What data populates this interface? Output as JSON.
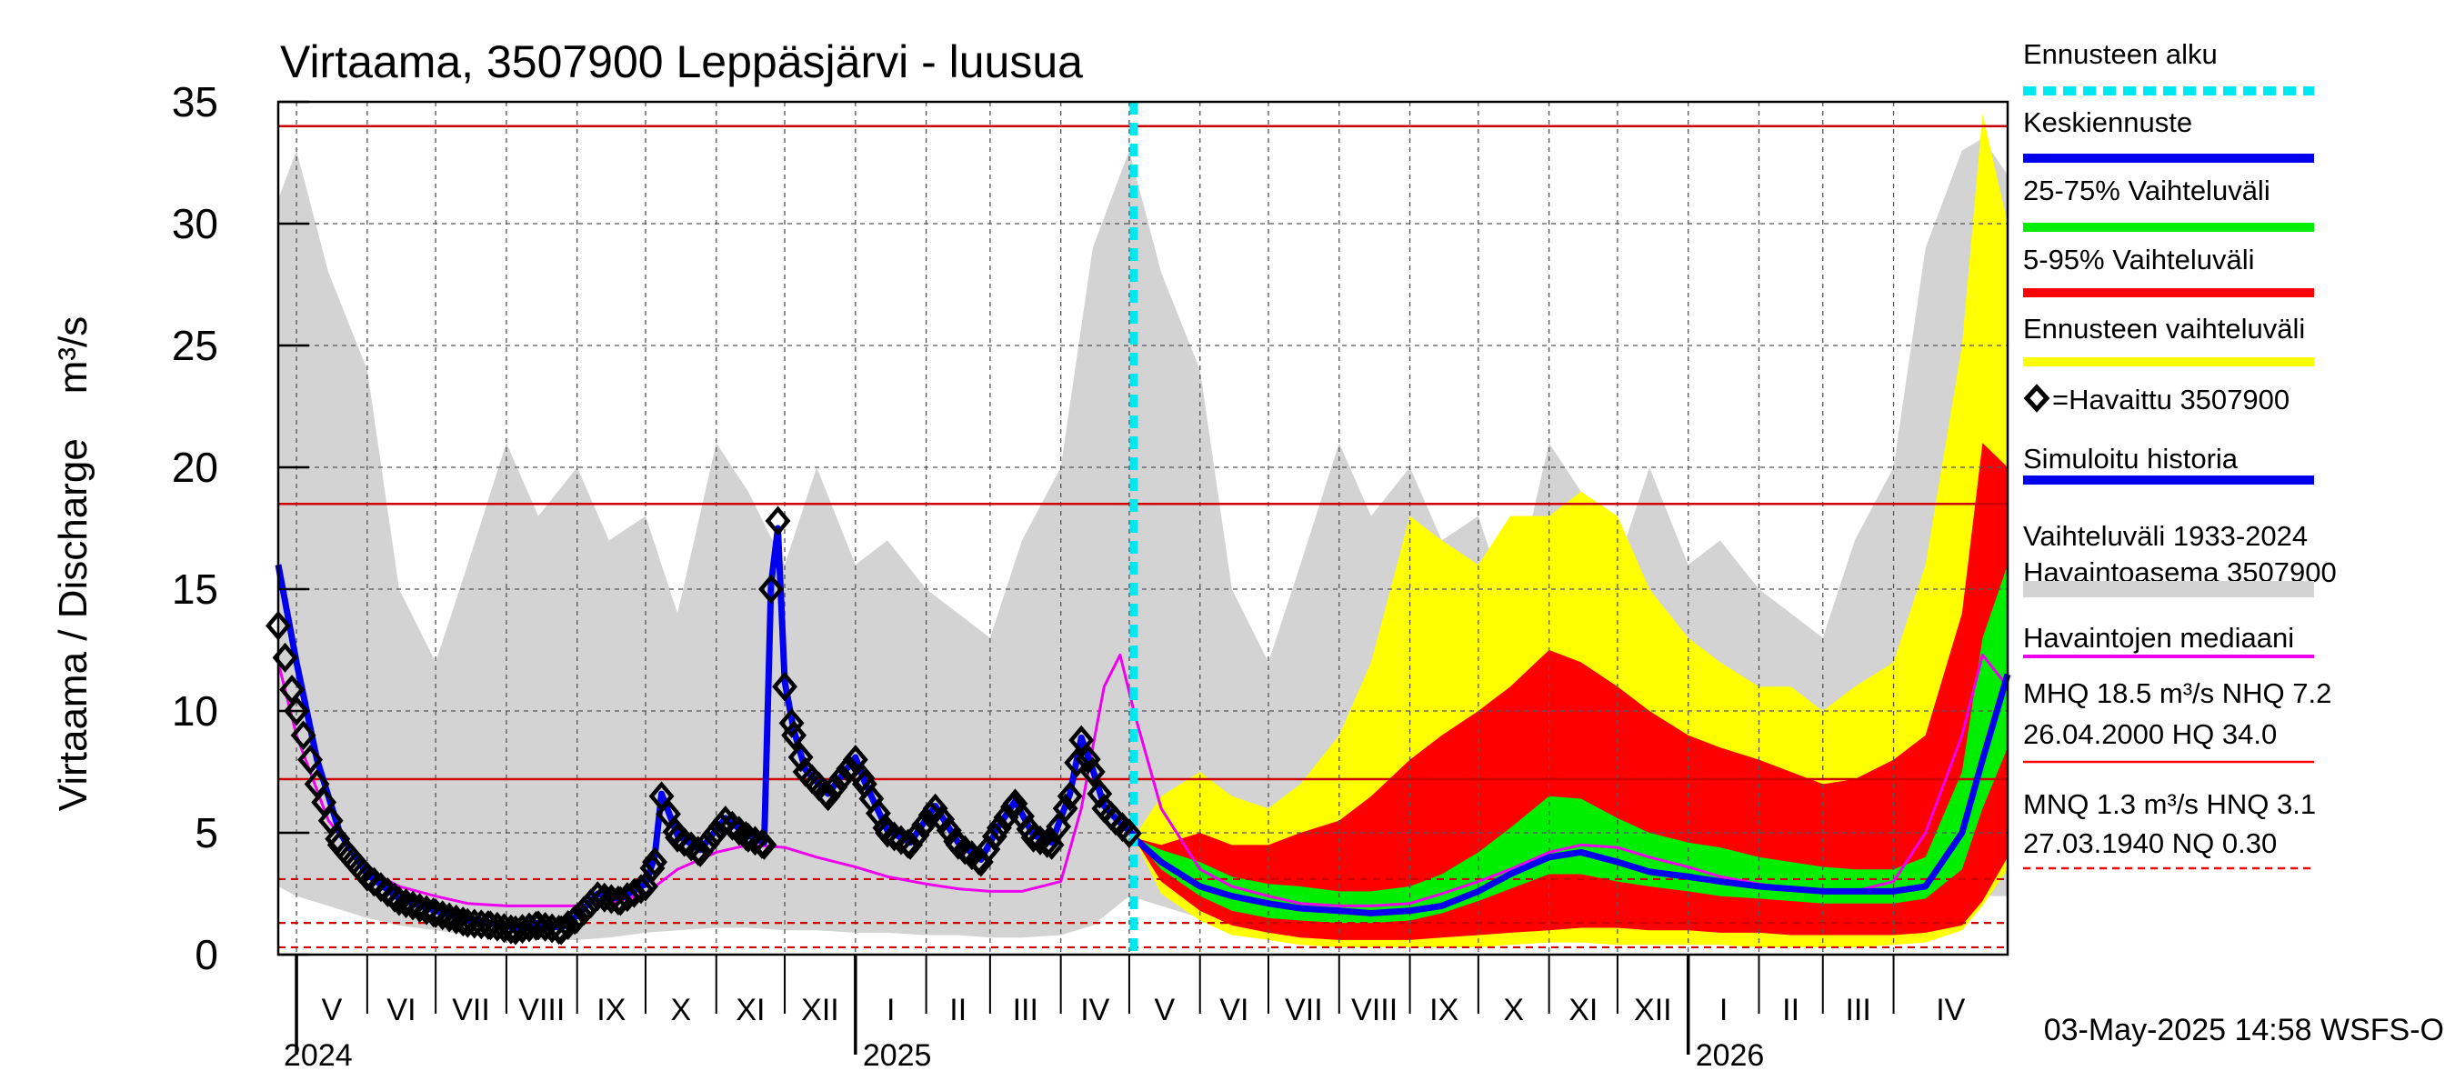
{
  "chart_data": {
    "type": "area",
    "title": "Virtaama, 3507900 Leppäsjärvi - luusua",
    "ylabel": "Virtaama / Discharge    m³/s",
    "ylim": [
      0,
      35
    ],
    "yticks": [
      "0",
      "5",
      "10",
      "15",
      "20",
      "25",
      "30",
      "35"
    ],
    "x_range": [
      "2024-04-23",
      "2026-05-21"
    ],
    "forecast_start": "2025-05-03",
    "months": [
      {
        "label": "V",
        "start": "2024-05-01"
      },
      {
        "label": "VI",
        "start": "2024-06-01"
      },
      {
        "label": "VII",
        "start": "2024-07-01"
      },
      {
        "label": "VIII",
        "start": "2024-08-01"
      },
      {
        "label": "IX",
        "start": "2024-09-01"
      },
      {
        "label": "X",
        "start": "2024-10-01"
      },
      {
        "label": "XI",
        "start": "2024-11-01"
      },
      {
        "label": "XII",
        "start": "2024-12-01"
      },
      {
        "label": "I",
        "start": "2025-01-01"
      },
      {
        "label": "II",
        "start": "2025-02-01"
      },
      {
        "label": "III",
        "start": "2025-03-01"
      },
      {
        "label": "IV",
        "start": "2025-04-01"
      },
      {
        "label": "V",
        "start": "2025-05-01"
      },
      {
        "label": "VI",
        "start": "2025-06-01"
      },
      {
        "label": "VII",
        "start": "2025-07-01"
      },
      {
        "label": "VIII",
        "start": "2025-08-01"
      },
      {
        "label": "IX",
        "start": "2025-09-01"
      },
      {
        "label": "X",
        "start": "2025-10-01"
      },
      {
        "label": "XI",
        "start": "2025-11-01"
      },
      {
        "label": "XII",
        "start": "2025-12-01"
      },
      {
        "label": "I",
        "start": "2026-01-01"
      },
      {
        "label": "II",
        "start": "2026-02-01"
      },
      {
        "label": "III",
        "start": "2026-03-01"
      },
      {
        "label": "IV",
        "start": "2026-04-01"
      }
    ],
    "years": [
      {
        "label": "2024",
        "date": "2024-05-01"
      },
      {
        "label": "2025",
        "date": "2025-01-01"
      },
      {
        "label": "2026",
        "date": "2026-01-01"
      }
    ],
    "hlines_solid": [
      34.0,
      18.5,
      7.2
    ],
    "hlines_dashed": [
      3.1,
      1.3,
      0.3
    ],
    "hist_band": {
      "x": [
        "2024-04-23",
        "2024-05-01",
        "2024-05-15",
        "2024-06-01",
        "2024-06-15",
        "2024-07-01",
        "2024-07-15",
        "2024-08-01",
        "2024-08-15",
        "2024-09-01",
        "2024-09-15",
        "2024-10-01",
        "2024-10-15",
        "2024-11-01",
        "2024-11-15",
        "2024-12-01",
        "2024-12-15",
        "2025-01-01",
        "2025-01-15",
        "2025-02-01",
        "2025-02-15",
        "2025-03-01",
        "2025-03-15",
        "2025-04-01",
        "2025-04-15",
        "2025-05-01",
        "2025-05-15",
        "2025-06-01",
        "2025-06-15",
        "2025-07-01",
        "2025-07-15",
        "2025-08-01",
        "2025-08-15",
        "2025-09-01",
        "2025-09-15",
        "2025-10-01",
        "2025-10-15",
        "2025-11-01",
        "2025-11-15",
        "2025-12-01",
        "2025-12-15",
        "2026-01-01",
        "2026-01-15",
        "2026-02-01",
        "2026-02-15",
        "2026-03-01",
        "2026-03-15",
        "2026-04-01",
        "2026-04-15",
        "2026-05-01",
        "2026-05-10",
        "2026-05-21"
      ],
      "low": [
        2.8,
        2.4,
        2.0,
        1.5,
        1.2,
        1.0,
        0.8,
        0.7,
        0.6,
        0.6,
        0.7,
        0.9,
        1.0,
        1.1,
        1.1,
        1.0,
        1.0,
        0.9,
        0.9,
        0.8,
        0.8,
        0.7,
        0.7,
        0.8,
        1.2,
        2.4,
        2.0,
        1.5,
        1.2,
        1.0,
        0.8,
        0.7,
        0.6,
        0.6,
        0.7,
        0.9,
        1.0,
        1.1,
        1.1,
        1.0,
        1.0,
        0.9,
        0.9,
        0.8,
        0.8,
        0.7,
        0.7,
        0.8,
        1.2,
        2.6,
        2.4,
        2.4
      ],
      "high": [
        31.0,
        33.0,
        28.0,
        24.0,
        15.0,
        12.0,
        16.0,
        21.0,
        18.0,
        20.0,
        17.0,
        18.0,
        14.0,
        21.0,
        19.0,
        16.0,
        20.0,
        16.0,
        17.0,
        15.0,
        14.0,
        13.0,
        17.0,
        20.0,
        29.0,
        33.0,
        28.0,
        24.0,
        15.0,
        12.0,
        16.0,
        21.0,
        18.0,
        20.0,
        17.0,
        18.0,
        14.0,
        21.0,
        19.0,
        16.0,
        20.0,
        16.0,
        17.0,
        15.0,
        14.0,
        13.0,
        17.0,
        20.0,
        29.0,
        33.0,
        33.5,
        32.0
      ]
    },
    "hist_median": {
      "x": [
        "2024-04-23",
        "2024-05-01",
        "2024-05-15",
        "2024-06-01",
        "2024-06-15",
        "2024-07-01",
        "2024-07-15",
        "2024-08-01",
        "2024-08-15",
        "2024-09-01",
        "2024-09-15",
        "2024-10-01",
        "2024-10-15",
        "2024-11-01",
        "2024-11-15",
        "2024-12-01",
        "2024-12-15",
        "2025-01-01",
        "2025-01-15",
        "2025-02-01",
        "2025-02-15",
        "2025-03-01",
        "2025-03-15",
        "2025-04-01",
        "2025-04-10",
        "2025-04-20",
        "2025-04-27",
        "2025-05-03",
        "2025-05-15",
        "2025-06-01",
        "2025-06-15",
        "2025-07-01",
        "2025-07-15",
        "2025-08-01",
        "2025-08-15",
        "2025-09-01",
        "2025-09-15",
        "2025-10-01",
        "2025-10-15",
        "2025-11-01",
        "2025-11-15",
        "2025-12-01",
        "2025-12-15",
        "2026-01-01",
        "2026-01-15",
        "2026-02-01",
        "2026-02-15",
        "2026-03-01",
        "2026-03-15",
        "2026-04-01",
        "2026-04-15",
        "2026-05-01",
        "2026-05-10",
        "2026-05-21"
      ],
      "y": [
        12.0,
        9.0,
        5.5,
        3.5,
        2.8,
        2.4,
        2.1,
        2.0,
        2.0,
        2.0,
        2.1,
        2.5,
        3.5,
        4.2,
        4.5,
        4.4,
        4.0,
        3.6,
        3.2,
        2.9,
        2.7,
        2.6,
        2.6,
        3.0,
        6.0,
        11.0,
        12.3,
        10.0,
        6.0,
        3.5,
        2.8,
        2.4,
        2.1,
        2.0,
        2.0,
        2.1,
        2.5,
        3.0,
        3.5,
        4.2,
        4.5,
        4.4,
        4.0,
        3.6,
        3.2,
        2.9,
        2.7,
        2.6,
        2.6,
        3.0,
        5.0,
        9.0,
        12.3,
        11.0
      ]
    },
    "observed": {
      "x": [
        "2024-04-23",
        "2024-05-01",
        "2024-05-10",
        "2024-05-20",
        "2024-06-01",
        "2024-06-15",
        "2024-07-01",
        "2024-07-15",
        "2024-07-25",
        "2024-08-05",
        "2024-08-15",
        "2024-08-25",
        "2024-09-01",
        "2024-09-10",
        "2024-09-20",
        "2024-10-01",
        "2024-10-05",
        "2024-10-08",
        "2024-10-15",
        "2024-10-25",
        "2024-11-05",
        "2024-11-15",
        "2024-11-22",
        "2024-11-25",
        "2024-11-28",
        "2024-12-01",
        "2024-12-05",
        "2024-12-10",
        "2024-12-20",
        "2025-01-01",
        "2025-01-05",
        "2025-01-15",
        "2025-01-25",
        "2025-02-05",
        "2025-02-15",
        "2025-02-25",
        "2025-03-05",
        "2025-03-12",
        "2025-03-20",
        "2025-03-28",
        "2025-04-05",
        "2025-04-10",
        "2025-04-15",
        "2025-04-20",
        "2025-04-25",
        "2025-05-03"
      ],
      "y": [
        13.5,
        10.0,
        7.0,
        4.5,
        3.2,
        2.2,
        1.7,
        1.3,
        1.2,
        1.0,
        1.2,
        1.0,
        1.5,
        2.4,
        2.2,
        2.8,
        3.8,
        6.5,
        4.8,
        4.2,
        5.5,
        4.8,
        4.5,
        15.0,
        17.8,
        11.0,
        9.0,
        7.5,
        6.5,
        8.0,
        7.0,
        5.0,
        4.5,
        6.0,
        4.5,
        3.8,
        5.2,
        6.2,
        4.8,
        4.5,
        6.5,
        8.8,
        7.5,
        6.0,
        5.5,
        4.8
      ]
    },
    "simulated": {
      "x": [
        "2024-04-23",
        "2024-05-01",
        "2024-05-10",
        "2024-05-20",
        "2024-06-01",
        "2024-06-15",
        "2024-07-01",
        "2024-07-15",
        "2024-07-25",
        "2024-08-05",
        "2024-08-15",
        "2024-08-25",
        "2024-09-01",
        "2024-09-10",
        "2024-09-20",
        "2024-10-01",
        "2024-10-05",
        "2024-10-08",
        "2024-10-15",
        "2024-10-25",
        "2024-11-05",
        "2024-11-15",
        "2024-11-22",
        "2024-11-25",
        "2024-11-28",
        "2024-12-01",
        "2024-12-05",
        "2024-12-10",
        "2024-12-20",
        "2025-01-01",
        "2025-01-05",
        "2025-01-15",
        "2025-01-25",
        "2025-02-05",
        "2025-02-15",
        "2025-02-25",
        "2025-03-05",
        "2025-03-12",
        "2025-03-20",
        "2025-03-28",
        "2025-04-05",
        "2025-04-10",
        "2025-04-15",
        "2025-04-20",
        "2025-04-25",
        "2025-05-03"
      ],
      "y": [
        16.0,
        12.0,
        8.0,
        5.0,
        3.3,
        2.3,
        1.8,
        1.4,
        1.3,
        1.1,
        1.3,
        1.1,
        1.6,
        2.5,
        2.3,
        2.9,
        4.0,
        6.6,
        4.9,
        4.3,
        5.6,
        4.9,
        4.6,
        15.2,
        17.5,
        11.2,
        9.2,
        7.6,
        6.6,
        8.1,
        7.1,
        5.1,
        4.6,
        6.1,
        4.6,
        3.9,
        5.3,
        6.3,
        4.9,
        4.6,
        6.6,
        8.9,
        7.6,
        6.1,
        5.6,
        4.9
      ]
    },
    "forecast_x": [
      "2025-05-03",
      "2025-05-15",
      "2025-06-01",
      "2025-06-15",
      "2025-07-01",
      "2025-07-15",
      "2025-08-01",
      "2025-08-15",
      "2025-09-01",
      "2025-09-15",
      "2025-10-01",
      "2025-10-15",
      "2025-11-01",
      "2025-11-15",
      "2025-12-01",
      "2025-12-15",
      "2026-01-01",
      "2026-01-15",
      "2026-02-01",
      "2026-02-15",
      "2026-03-01",
      "2026-03-15",
      "2026-04-01",
      "2026-04-15",
      "2026-05-01",
      "2026-05-10",
      "2026-05-21"
    ],
    "forecast_bands": {
      "ennuste": {
        "low": [
          4.8,
          2.5,
          1.4,
          0.8,
          0.6,
          0.4,
          0.3,
          0.3,
          0.3,
          0.3,
          0.3,
          0.4,
          0.5,
          0.5,
          0.4,
          0.4,
          0.4,
          0.4,
          0.3,
          0.3,
          0.3,
          0.3,
          0.4,
          0.5,
          1.0,
          2.0,
          3.5
        ],
        "high": [
          4.8,
          6.5,
          7.5,
          6.5,
          6.0,
          7.0,
          9.0,
          12.0,
          18.0,
          17.0,
          16.0,
          18.0,
          18.0,
          19.0,
          18.0,
          15.0,
          13.0,
          12.0,
          11.0,
          11.0,
          10.0,
          11.0,
          12.0,
          16.0,
          25.0,
          34.5,
          30.0
        ]
      },
      "p5_95": {
        "low": [
          4.8,
          3.0,
          1.8,
          1.2,
          0.9,
          0.7,
          0.6,
          0.6,
          0.6,
          0.7,
          0.8,
          0.9,
          1.0,
          1.1,
          1.1,
          1.0,
          1.0,
          0.9,
          0.9,
          0.8,
          0.8,
          0.8,
          0.8,
          0.9,
          1.2,
          2.2,
          4.0
        ],
        "high": [
          4.8,
          4.5,
          5.0,
          4.5,
          4.5,
          5.0,
          5.5,
          6.5,
          8.0,
          9.0,
          10.0,
          11.0,
          12.5,
          12.0,
          11.0,
          10.0,
          9.0,
          8.5,
          8.0,
          7.5,
          7.0,
          7.2,
          8.0,
          9.0,
          14.0,
          21.0,
          20.0
        ]
      },
      "p25_75": {
        "low": [
          4.8,
          3.5,
          2.4,
          1.8,
          1.5,
          1.4,
          1.3,
          1.3,
          1.4,
          1.7,
          2.2,
          2.7,
          3.3,
          3.3,
          3.0,
          2.8,
          2.6,
          2.4,
          2.3,
          2.2,
          2.1,
          2.1,
          2.1,
          2.3,
          3.5,
          6.0,
          8.5
        ],
        "high": [
          4.8,
          4.3,
          3.8,
          3.2,
          2.9,
          2.8,
          2.6,
          2.6,
          2.8,
          3.3,
          4.2,
          5.2,
          6.5,
          6.4,
          5.6,
          5.0,
          4.6,
          4.4,
          4.0,
          3.8,
          3.6,
          3.5,
          3.5,
          4.0,
          7.5,
          13.0,
          16.0
        ]
      }
    },
    "forecast_mean": [
      4.8,
      3.8,
      2.8,
      2.4,
      2.1,
      1.9,
      1.8,
      1.7,
      1.8,
      2.0,
      2.6,
      3.3,
      4.0,
      4.2,
      3.8,
      3.4,
      3.2,
      3.0,
      2.8,
      2.7,
      2.6,
      2.6,
      2.6,
      2.8,
      5.0,
      8.0,
      11.5
    ],
    "legend": [
      {
        "text": "Ennusteen alku",
        "color": "#00e8ef",
        "style": "dashed"
      },
      {
        "text": "Keskiennuste",
        "color": "#0000ee",
        "style": "solid"
      },
      {
        "text": "25-75% Vaihteluväli",
        "color": "#00ee00",
        "style": "solid"
      },
      {
        "text": "5-95% Vaihteluväli",
        "color": "#ff0000",
        "style": "solid"
      },
      {
        "text": "Ennusteen vaihteluväli",
        "color": "#ffff00",
        "style": "solid"
      },
      {
        "text": "=Havaittu 3507900",
        "color": "#000000",
        "style": "marker"
      },
      {
        "text": "Simuloitu historia",
        "color": "#0000ee",
        "style": "solid"
      },
      {
        "text": "Vaihteluväli 1933-2024",
        "text2": " Havaintoasema 3507900",
        "color": "#d3d3d3",
        "style": "thick"
      },
      {
        "text": "Havaintojen mediaani",
        "color": "#ee00ee",
        "style": "thin"
      }
    ],
    "stats": [
      {
        "line1": "MHQ 18.5 m³/s NHQ  7.2",
        "line2": "26.04.2000 HQ 34.0",
        "color": "#ff0000",
        "style": "solid"
      },
      {
        "line1": "MNQ  1.3 m³/s HNQ  3.1",
        "line2": "27.03.1940 NQ 0.30",
        "color": "#ff0000",
        "style": "dashed"
      }
    ],
    "footer": "03-May-2025 14:58 WSFS-O"
  },
  "colors": {
    "hist_band": "#d3d3d3",
    "ennuste": "#ffff00",
    "p5_95": "#ff0000",
    "p25_75": "#00ee00",
    "mean": "#0000ee",
    "median": "#ee00ee",
    "observed": "#000000",
    "simulated": "#0000ee",
    "forecast_start": "#00e8ef",
    "ref_lines": "#cc0000"
  }
}
